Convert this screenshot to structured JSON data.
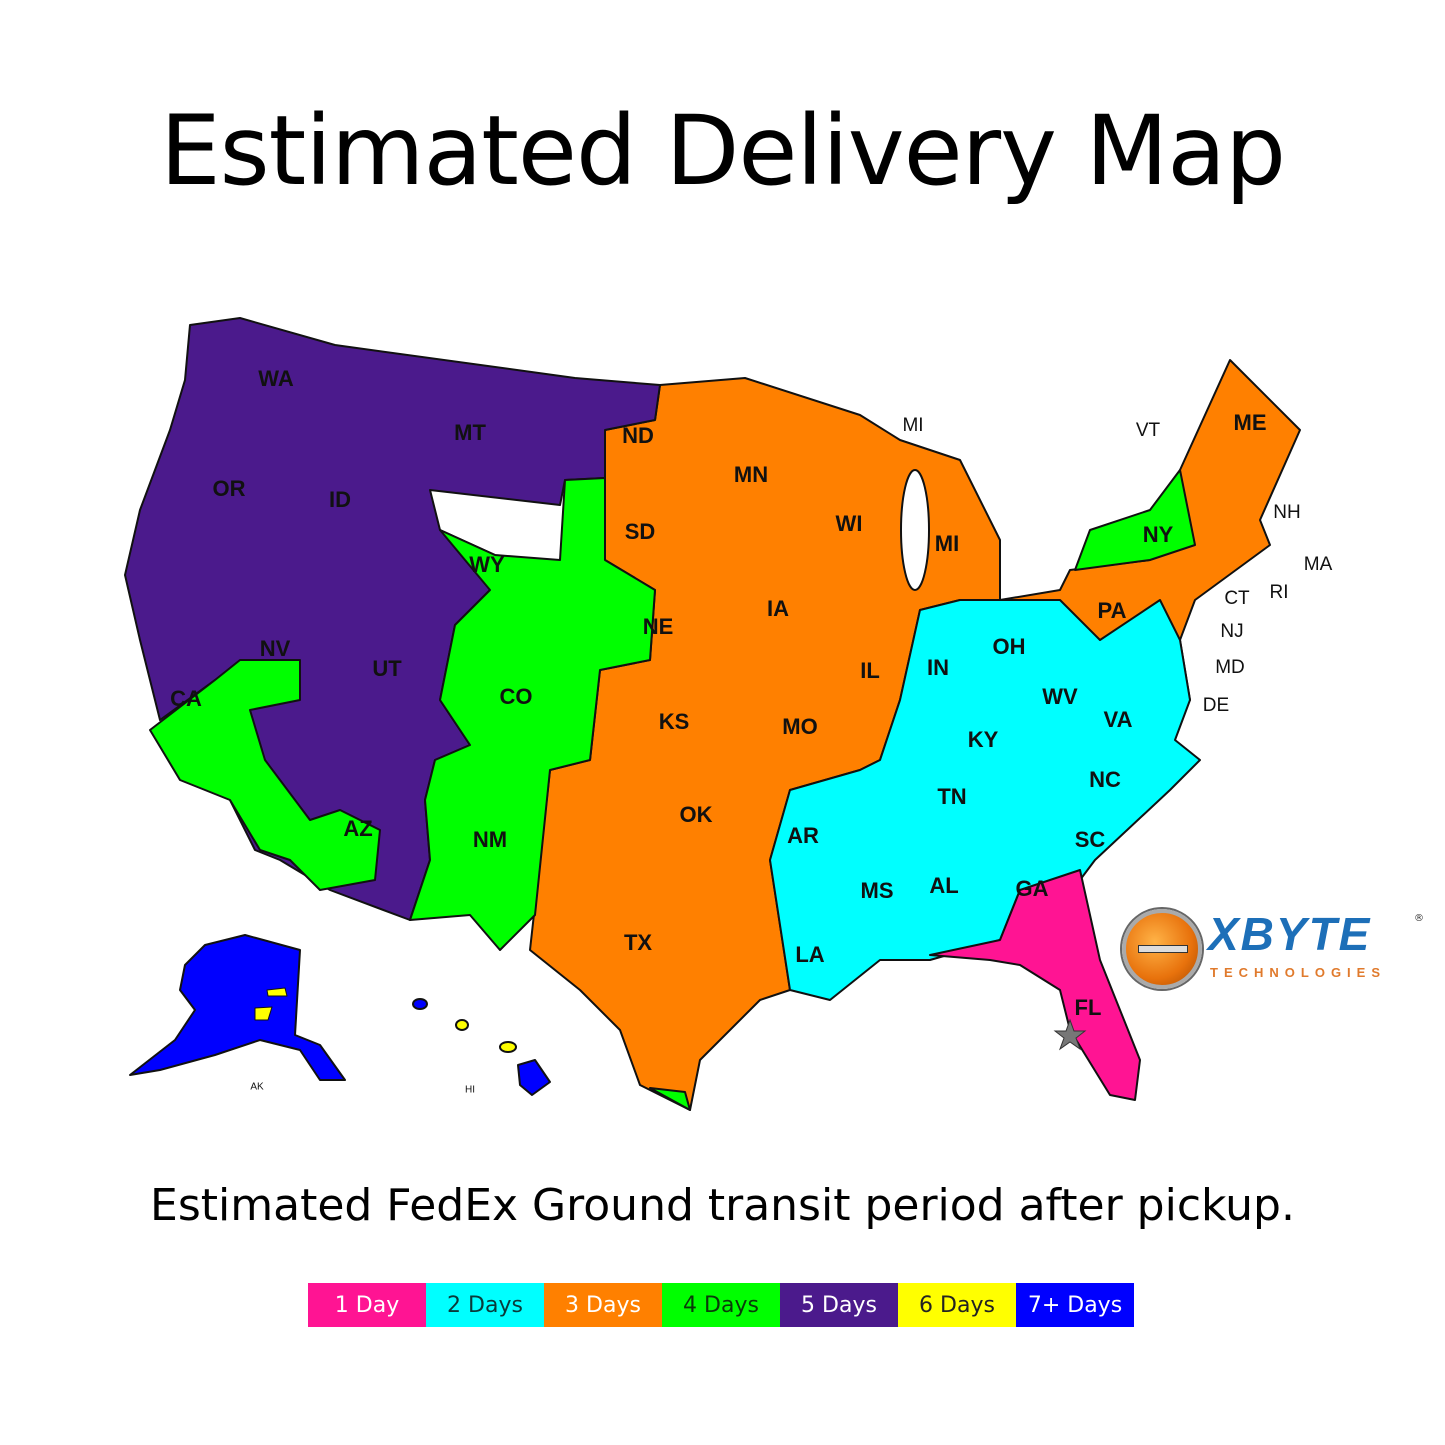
{
  "title": "Estimated Delivery Map",
  "subtitle": "Estimated FedEx Ground transit period after pickup.",
  "colors": {
    "1_day": "#ff1493",
    "2_days": "#00ffff",
    "3_days": "#ff8000",
    "4_days": "#00ff00",
    "5_days": "#4b1a8c",
    "6_days": "#ffff00",
    "7_plus_days": "#0000ff",
    "origin_star": "#777777"
  },
  "legend": [
    {
      "label": "1 Day",
      "color": "#ff1493",
      "text_color": "#ffffff"
    },
    {
      "label": "2 Days",
      "color": "#00ffff",
      "text_color": "#0a3a3a"
    },
    {
      "label": "3 Days",
      "color": "#ff8000",
      "text_color": "#ffffff"
    },
    {
      "label": "4 Days",
      "color": "#00ff00",
      "text_color": "#0a3a0a"
    },
    {
      "label": "5 Days",
      "color": "#4b1a8c",
      "text_color": "#ffffff"
    },
    {
      "label": "6 Days",
      "color": "#ffff00",
      "text_color": "#222222"
    },
    {
      "label": "7+ Days",
      "color": "#0000ff",
      "text_color": "#ffffff"
    }
  ],
  "states": [
    "WA",
    "MT",
    "ND",
    "MN",
    "MI",
    "VT",
    "ME",
    "OR",
    "ID",
    "SD",
    "WI",
    "MI",
    "NY",
    "NH",
    "MA",
    "WY",
    "NE",
    "IA",
    "CT",
    "RI",
    "PA",
    "NJ",
    "NV",
    "UT",
    "CO",
    "IL",
    "IN",
    "OH",
    "MD",
    "CA",
    "KS",
    "MO",
    "WV",
    "VA",
    "KY",
    "DE",
    "TN",
    "NC",
    "OK",
    "AR",
    "SC",
    "AZ",
    "NM",
    "MS",
    "AL",
    "GA",
    "TX",
    "LA",
    "FL",
    "AK",
    "HI"
  ],
  "origin_marker": "star-icon",
  "logo": {
    "name": "XBYTE",
    "registered": "®",
    "tagline": "TECHNOLOGIES"
  }
}
